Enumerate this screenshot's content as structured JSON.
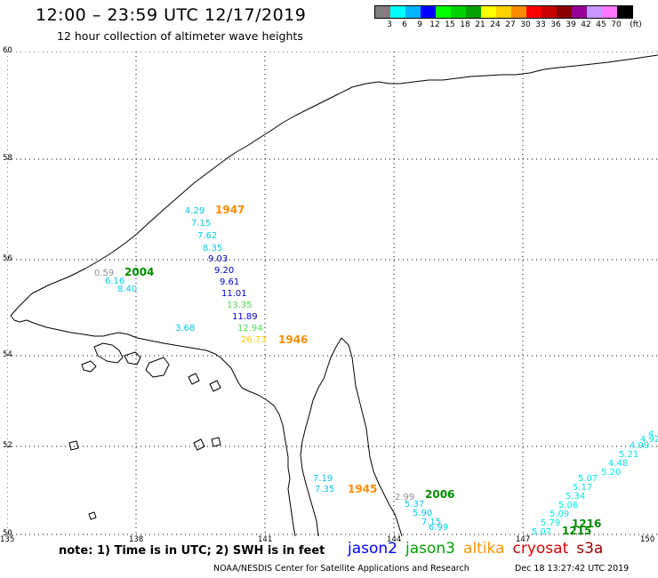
{
  "header": {
    "title": "12:00 – 23:59 UTC 12/17/2019",
    "subtitle": "12 hour collection of altimeter wave heights"
  },
  "legend": {
    "colors": [
      "#808080",
      "#00ffff",
      "#00b4ff",
      "#0000ff",
      "#00ff00",
      "#00d200",
      "#00a000",
      "#ffff00",
      "#ffd200",
      "#ff8c00",
      "#ff0000",
      "#c80000",
      "#8c0000",
      "#960096",
      "#c896ff",
      "#ff78ff",
      "#000000"
    ],
    "labels": [
      "3",
      "6",
      "9",
      "12",
      "15",
      "18",
      "21",
      "24",
      "27",
      "30",
      "33",
      "36",
      "39",
      "42",
      "45",
      "70",
      "(ft)"
    ]
  },
  "map": {
    "lat_labels": [
      "60",
      "58",
      "56",
      "54",
      "52",
      "50"
    ],
    "lon_labels": [
      "135",
      "138",
      "141",
      "144",
      "147",
      "150"
    ]
  },
  "annotations": [
    {
      "text": "4.29",
      "color": "#00c8e6"
    },
    {
      "text": "7.15",
      "color": "#00c8e6"
    },
    {
      "text": "7.62",
      "color": "#00c8e6"
    },
    {
      "text": "8.35",
      "color": "#00c8e6"
    },
    {
      "text": "9.03",
      "color": "#0000c8"
    },
    {
      "text": "9.20",
      "color": "#0000c8"
    },
    {
      "text": "9.61",
      "color": "#0000c8"
    },
    {
      "text": "11.01",
      "color": "#0000c8"
    },
    {
      "text": "13.35",
      "color": "#50dc50"
    },
    {
      "text": "11.89",
      "color": "#0000c8"
    },
    {
      "text": "12.94",
      "color": "#50dc50"
    },
    {
      "text": "26.73",
      "color": "#ffc800"
    },
    {
      "text": "1947",
      "color": "#ff8c00",
      "bold": true
    },
    {
      "text": "1946",
      "color": "#ff8c00",
      "bold": true
    },
    {
      "text": "0.59",
      "color": "#909090"
    },
    {
      "text": "6.16",
      "color": "#00c8e6"
    },
    {
      "text": "8.40",
      "color": "#00c8e6"
    },
    {
      "text": "2004",
      "color": "#008c00",
      "bold": true
    },
    {
      "text": "3.68",
      "color": "#00c8e6"
    },
    {
      "text": "7.19",
      "color": "#00c8e6"
    },
    {
      "text": "7.35",
      "color": "#00c8e6"
    },
    {
      "text": "1945",
      "color": "#ff8c00",
      "bold": true
    },
    {
      "text": "2.99",
      "color": "#909090"
    },
    {
      "text": "2006",
      "color": "#008c00",
      "bold": true
    },
    {
      "text": "5.37",
      "color": "#00c8e6"
    },
    {
      "text": "5.90",
      "color": "#00c8e6"
    },
    {
      "text": "7.15",
      "color": "#00c8e6"
    },
    {
      "text": "6.99",
      "color": "#00c8e6"
    },
    {
      "text": "5.07",
      "color": "#00e6e6"
    },
    {
      "text": "5.79",
      "color": "#00e6e6"
    },
    {
      "text": "5.09",
      "color": "#00e6e6"
    },
    {
      "text": "5.06",
      "color": "#00e6e6"
    },
    {
      "text": "5.34",
      "color": "#00e6e6"
    },
    {
      "text": "5.17",
      "color": "#00e6e6"
    },
    {
      "text": "5.07",
      "color": "#00e6e6"
    },
    {
      "text": "5.20",
      "color": "#00e6e6"
    },
    {
      "text": "4.48",
      "color": "#00e6e6"
    },
    {
      "text": "5.21",
      "color": "#00e6e6"
    },
    {
      "text": "4.99",
      "color": "#00e6e6"
    },
    {
      "text": "4.92",
      "color": "#00e6e6"
    },
    {
      "text": "4.",
      "color": "#00e6e6"
    },
    {
      "text": "1216",
      "color": "#008c00",
      "bold": true
    },
    {
      "text": "1215",
      "color": "#008c00",
      "bold": true
    }
  ],
  "footer": {
    "note": "note: 1) Time is in UTC; 2) SWH is in feet",
    "satellites": [
      {
        "name": "jason2",
        "color": "#0000ff"
      },
      {
        "name": "jason3",
        "color": "#00a000"
      },
      {
        "name": "altika",
        "color": "#ff9600"
      },
      {
        "name": "cryosat",
        "color": "#dc0000"
      },
      {
        "name": "s3a",
        "color": "#a00000"
      }
    ],
    "credit": "NOAA/NESDIS Center for Satellite Applications and Research",
    "timestamp": "Dec 18 13:27:42 UTC 2019"
  }
}
